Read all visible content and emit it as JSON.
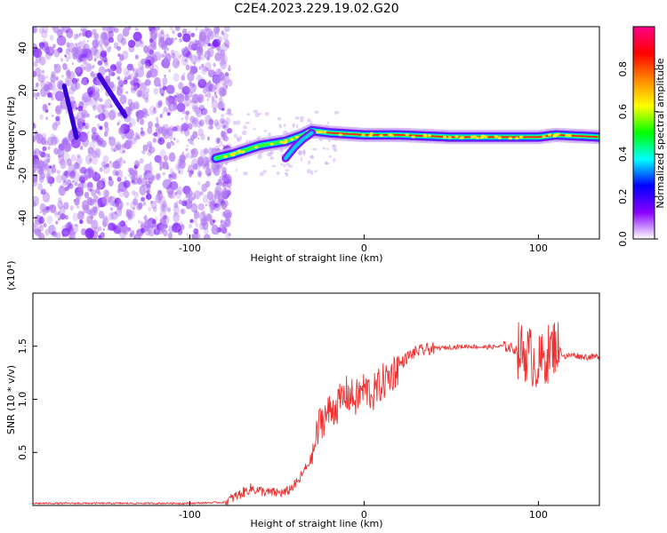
{
  "title": "C2E4.2023.229.19.02.G20",
  "colorbar": {
    "label": "Normalized spectral amplitude",
    "ticks": [
      "0.0",
      "0.2",
      "0.4",
      "0.6",
      "0.8"
    ],
    "colors": [
      "#ffffff",
      "#8800ff",
      "#0000ff",
      "#00ffff",
      "#00ff00",
      "#ffff00",
      "#ff8800",
      "#ff0000",
      "#ff0088"
    ]
  },
  "chart_data": [
    {
      "type": "heatmap",
      "title": "",
      "xlabel": "Height of straight line (km)",
      "ylabel": "Frequency (Hz)",
      "xlim": [
        -190,
        135
      ],
      "ylim": [
        -50,
        50
      ],
      "xticks": [
        "-100",
        "0",
        "100"
      ],
      "xtick_values": [
        -100,
        0,
        100
      ],
      "yticks": [
        "40",
        "20",
        "0",
        "-20",
        "-40"
      ],
      "ytick_values": [
        40,
        20,
        0,
        -20,
        -40
      ],
      "grid": false,
      "colorscale_range": [
        0,
        1
      ],
      "ridge": {
        "name": "",
        "x": [
          -85,
          -75,
          -60,
          -45,
          -35,
          -30,
          -20,
          0,
          20,
          50,
          75,
          90,
          100,
          110,
          135
        ],
        "y": [
          -12,
          -10,
          -6,
          -4,
          -1,
          1,
          0,
          -1,
          -1,
          -2,
          -2,
          -2,
          -2,
          -1,
          -2
        ]
      },
      "secondary_trace": {
        "x": [
          -45,
          -40,
          -35,
          -30
        ],
        "y": [
          -12,
          -7,
          -3,
          0
        ]
      }
    },
    {
      "type": "line",
      "title": "",
      "xlabel": "Height of straight line (km)",
      "ylabel": "SNR (10 * v/v)",
      "ylabel_scale": "(x10⁴)",
      "xlim": [
        -190,
        135
      ],
      "ylim": [
        0,
        2.0
      ],
      "xticks": [
        "-100",
        "0",
        "100"
      ],
      "xtick_values": [
        -100,
        0,
        100
      ],
      "yticks": [
        "0.5",
        "1.0",
        "1.5"
      ],
      "ytick_values": [
        0.5,
        1.0,
        1.5
      ],
      "grid": false,
      "series": [
        {
          "name": "",
          "color": "#ee3030",
          "x": [
            -190,
            -150,
            -100,
            -80,
            -72,
            -65,
            -55,
            -45,
            -38,
            -30,
            -25,
            -20,
            -15,
            -10,
            -5,
            0,
            5,
            10,
            15,
            20,
            25,
            30,
            40,
            50,
            60,
            70,
            80,
            85,
            90,
            95,
            100,
            105,
            110,
            115,
            120,
            125,
            135
          ],
          "y": [
            0.02,
            0.02,
            0.02,
            0.03,
            0.1,
            0.16,
            0.12,
            0.12,
            0.22,
            0.45,
            0.8,
            0.88,
            0.95,
            1.05,
            1.0,
            1.1,
            1.05,
            1.15,
            1.22,
            1.32,
            1.4,
            1.45,
            1.48,
            1.49,
            1.5,
            1.49,
            1.5,
            1.48,
            1.45,
            1.42,
            1.32,
            1.42,
            1.52,
            1.4,
            1.42,
            1.4,
            1.4
          ]
        }
      ]
    }
  ]
}
